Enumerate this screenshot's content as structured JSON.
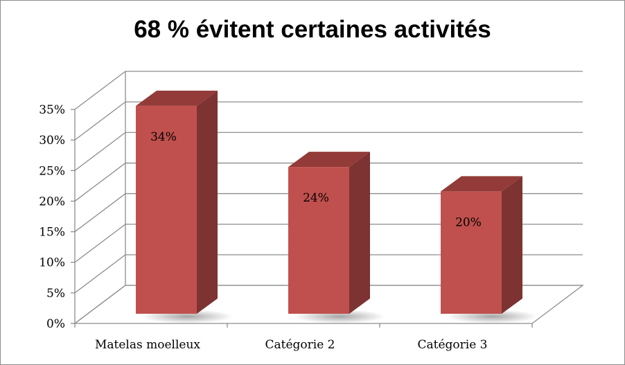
{
  "chart_data": {
    "type": "bar",
    "title": "68 % évitent certaines activités",
    "categories": [
      "Matelas moelleux",
      "Catégorie 2",
      "Catégorie 3"
    ],
    "values": [
      34,
      24,
      20
    ],
    "data_labels": [
      "34%",
      "24%",
      "20%"
    ],
    "ylim": [
      0,
      35
    ],
    "yticks": [
      0,
      5,
      10,
      15,
      20,
      25,
      30,
      35
    ],
    "ytick_labels": [
      "0%",
      "5%",
      "10%",
      "15%",
      "20%",
      "25%",
      "30%",
      "35%"
    ],
    "grid": true,
    "legend": "none",
    "style": "3d-column",
    "colors": {
      "bar_front": "#c0504d",
      "bar_side": "#7d3331",
      "bar_top": "#933b38",
      "grid": "#8c8c8c"
    }
  }
}
